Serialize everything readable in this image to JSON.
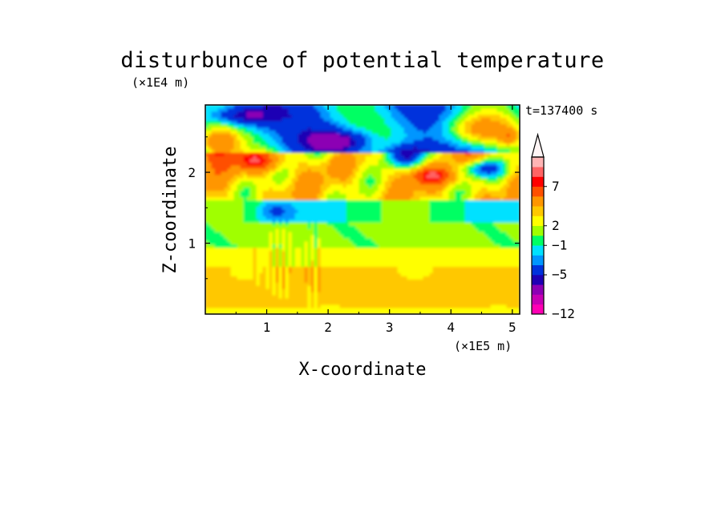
{
  "chart_data": {
    "type": "heatmap",
    "title": "disturbunce of potential temperature",
    "xlabel": "X-coordinate",
    "ylabel": "Z-coordinate",
    "x_unit": "(×1E5 m)",
    "y_unit": "(×1E4 m)",
    "time_label": "t=137400 s",
    "xlim": [
      0,
      5.12
    ],
    "ylim": [
      0,
      2.95
    ],
    "x_ticks": [
      {
        "value": 1,
        "label": "1"
      },
      {
        "value": 2,
        "label": "2"
      },
      {
        "value": 3,
        "label": "3"
      },
      {
        "value": 4,
        "label": "4"
      },
      {
        "value": 5,
        "label": "5"
      }
    ],
    "y_ticks": [
      {
        "value": 1,
        "label": "1"
      },
      {
        "value": 2,
        "label": "2"
      }
    ],
    "colorbar": {
      "levels": [
        {
          "color": "#ff00b4"
        },
        {
          "color": "#c800b4"
        },
        {
          "color": "#8c00b4"
        },
        {
          "color": "#1e00b4"
        },
        {
          "color": "#0032dc"
        },
        {
          "color": "#0096ff"
        },
        {
          "color": "#00e1ff"
        },
        {
          "color": "#00ff64"
        },
        {
          "color": "#a0ff00"
        },
        {
          "color": "#ffff00"
        },
        {
          "color": "#ffc800"
        },
        {
          "color": "#ff9600"
        },
        {
          "color": "#ff5000"
        },
        {
          "color": "#ff0000"
        },
        {
          "color": "#ff6464"
        },
        {
          "color": "#ffb4b4"
        }
      ],
      "labels": [
        {
          "value": -12,
          "label": "−12",
          "index": 0
        },
        {
          "value": -5,
          "label": "−5",
          "index": 4
        },
        {
          "value": -1,
          "label": "−1",
          "index": 7
        },
        {
          "value": 2,
          "label": "2",
          "index": 9
        },
        {
          "value": 7,
          "label": "7",
          "index": 13
        }
      ],
      "extend_max": true
    },
    "field_summary": [
      {
        "z_range": [
          0,
          0.1
        ],
        "value": 1.5,
        "desc": "yellow"
      },
      {
        "z_range": [
          0.1,
          0.65
        ],
        "value": 2.5,
        "desc": "light orange"
      },
      {
        "z_range": [
          0.65,
          0.95
        ],
        "value": 1.5,
        "desc": "yellow"
      },
      {
        "z_range": [
          0.95,
          1.3
        ],
        "value": 0.3,
        "desc": "green"
      },
      {
        "z_range": [
          1.3,
          1.6
        ],
        "value": -0.8,
        "desc": "cyan / light blue"
      },
      {
        "z_range": [
          1.6,
          2.3
        ],
        "value": 2.5,
        "desc": "orange-yellow bands"
      },
      {
        "z_range": [
          2.3,
          2.95
        ],
        "value": -3,
        "desc": "blue cells with red/pink maxima"
      }
    ]
  }
}
